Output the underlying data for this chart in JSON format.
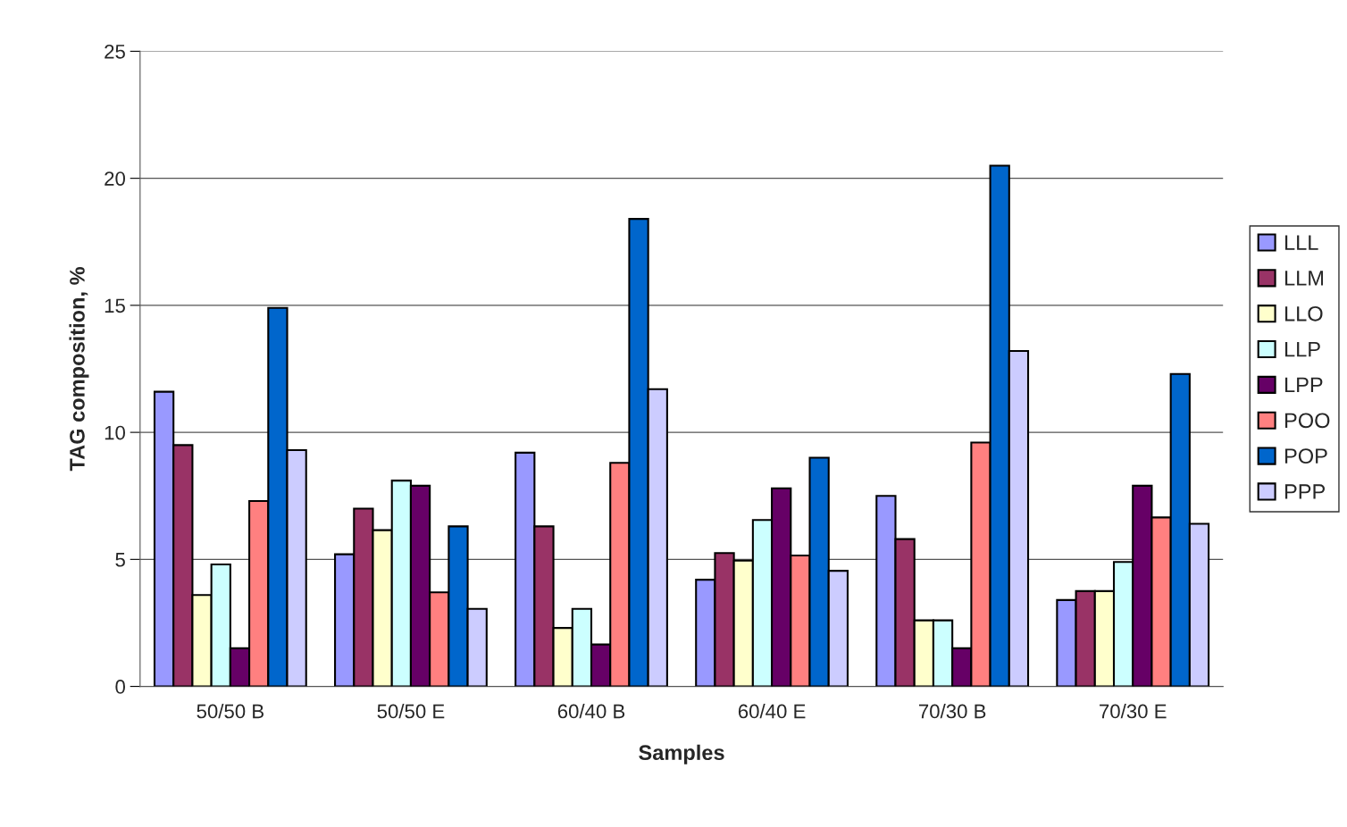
{
  "chart_data": {
    "type": "bar",
    "xlabel": "Samples",
    "ylabel": "TAG composition, %",
    "categories": [
      "50/50 B",
      "50/50 E",
      "60/40 B",
      "60/40 E",
      "70/30 B",
      "70/30 E"
    ],
    "series": [
      {
        "name": "LLL",
        "color": "#9999ff",
        "values": [
          11.6,
          5.2,
          9.2,
          4.2,
          7.5,
          3.4
        ]
      },
      {
        "name": "LLM",
        "color": "#993366",
        "values": [
          9.5,
          7.0,
          6.3,
          5.25,
          5.8,
          3.75
        ]
      },
      {
        "name": "LLO",
        "color": "#ffffcc",
        "values": [
          3.6,
          6.15,
          2.3,
          4.95,
          2.6,
          3.75
        ]
      },
      {
        "name": "LLP",
        "color": "#ccffff",
        "values": [
          4.8,
          8.1,
          3.05,
          6.55,
          2.6,
          4.9
        ]
      },
      {
        "name": "LPP",
        "color": "#660066",
        "values": [
          1.5,
          7.9,
          1.65,
          7.8,
          1.5,
          7.9
        ]
      },
      {
        "name": "POO",
        "color": "#ff8080",
        "values": [
          7.3,
          3.7,
          8.8,
          5.15,
          9.6,
          6.65
        ]
      },
      {
        "name": "POP",
        "color": "#0066cc",
        "values": [
          14.9,
          6.3,
          18.4,
          9.0,
          20.5,
          12.3
        ]
      },
      {
        "name": "PPP",
        "color": "#ccccff",
        "values": [
          9.3,
          3.05,
          11.7,
          4.55,
          13.2,
          6.4
        ]
      }
    ],
    "ylim": [
      0,
      25
    ],
    "yticks": [
      0,
      5,
      10,
      15,
      20,
      25
    ],
    "grid": "y",
    "legend": "right"
  }
}
